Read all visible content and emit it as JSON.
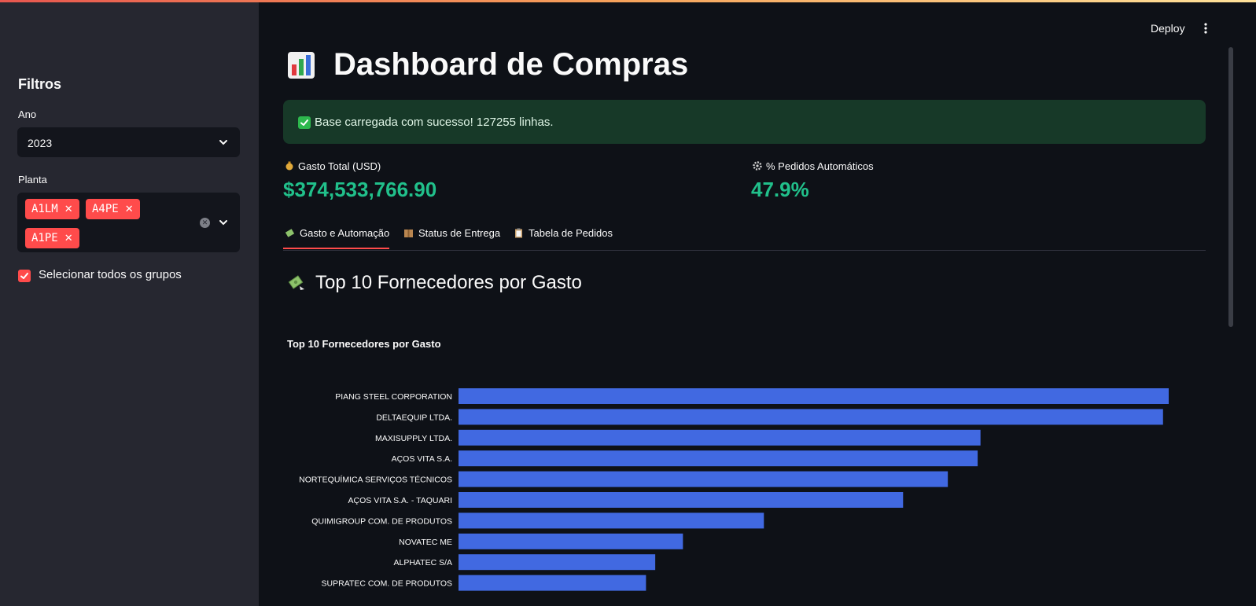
{
  "sidebar": {
    "title": "Filtros",
    "ano": {
      "label": "Ano",
      "value": "2023"
    },
    "planta": {
      "label": "Planta",
      "tags": [
        "A1LM",
        "A4PE",
        "A1PE"
      ]
    },
    "select_all": {
      "label": "Selecionar todos os grupos",
      "checked": true
    }
  },
  "header": {
    "deploy_label": "Deploy"
  },
  "main": {
    "title": "Dashboard de Compras",
    "alert": "Base carregada com sucesso! 127255 linhas.",
    "metrics": [
      {
        "label": "Gasto Total (USD)",
        "value": "$374,533,766.90",
        "icon": "money-bag-icon"
      },
      {
        "label": "% Pedidos Automáticos",
        "value": "47.9%",
        "icon": "gear-icon"
      }
    ],
    "tabs": [
      {
        "label": "Gasto e Automação",
        "icon": "money-wings-icon",
        "active": true
      },
      {
        "label": "Status de Entrega",
        "icon": "package-icon",
        "active": false
      },
      {
        "label": "Tabela de Pedidos",
        "icon": "clipboard-icon",
        "active": false
      }
    ],
    "section_title": "Top 10 Fornecedores por Gasto"
  },
  "colors": {
    "accent": "#ff4b4b",
    "metric": "#21c08b",
    "bar": "#4169e1",
    "alert_bg": "#173928"
  },
  "chart_data": {
    "type": "bar",
    "orientation": "horizontal",
    "title": "Top 10 Fornecedores por Gasto",
    "categories": [
      "PIANG STEEL CORPORATION",
      "DELTAEQUIP LTDA.",
      "MAXISUPPLY LTDA.",
      "AÇOS VITA S.A.",
      "NORTEQUÍMICA SERVIÇOS TÉCNICOS",
      "AÇOS VITA S.A. - TAQUARI",
      "QUIMIGROUP COM. DE PRODUTOS",
      "NOVATEC ME",
      "ALPHATEC S/A",
      "SUPRATEC COM. DE PRODUTOS"
    ],
    "values": [
      1.0,
      0.992,
      0.735,
      0.731,
      0.689,
      0.626,
      0.43,
      0.316,
      0.277,
      0.264
    ],
    "xlabel": "",
    "ylabel": ""
  }
}
